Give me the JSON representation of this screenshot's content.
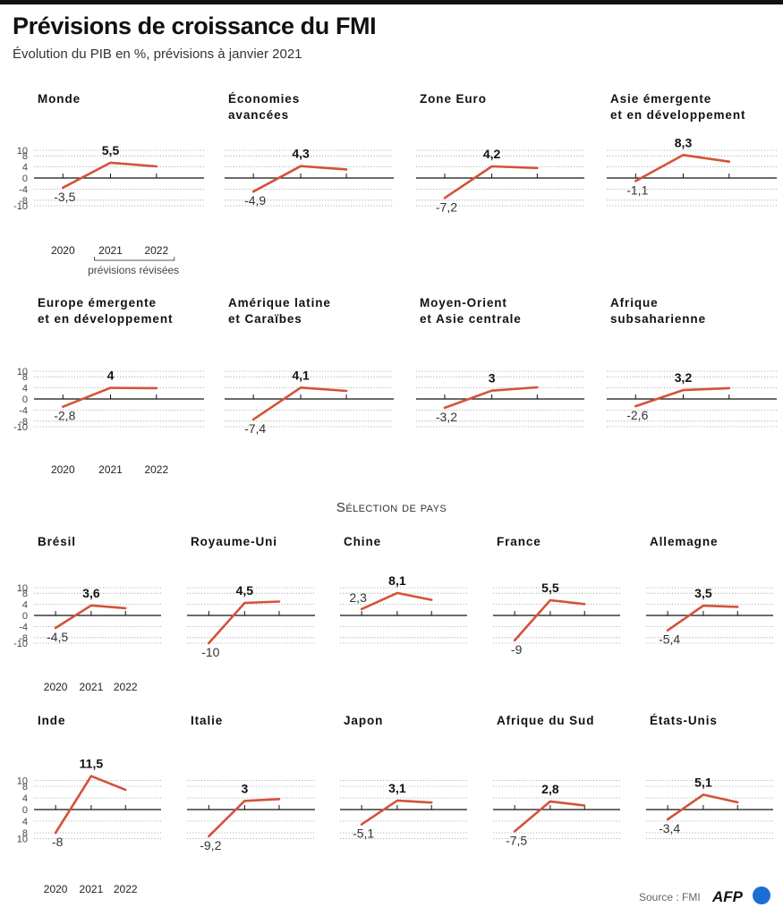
{
  "title": "Prévisions de croissance du FMI",
  "subtitle": "Évolution du PIB en %, prévisions à janvier 2021",
  "section_title": "Sélection de pays",
  "note": "prévisions révisées",
  "source": "Source : FMI",
  "logo": "AFP",
  "colors": {
    "line": "#d4523a",
    "axis": "#111111",
    "grid": "#9a9a9a",
    "logo_circle": "#1a6fd6"
  },
  "chart_data": [
    {
      "type": "line",
      "title": "Monde",
      "title_lines": [
        "Monde"
      ],
      "x": [
        "2020",
        "2021",
        "2022"
      ],
      "values": [
        -3.5,
        5.5,
        4.2
      ],
      "labels": [
        "-3,5",
        "5,5",
        ""
      ],
      "yticks": [
        10,
        8,
        4,
        0,
        -4,
        -8,
        -10
      ],
      "ylim": [
        -10,
        10
      ],
      "show_y": true,
      "show_x": true,
      "show_note": true
    },
    {
      "type": "line",
      "title": "Économies avancées",
      "title_lines": [
        "Économies",
        "avancées"
      ],
      "x": [
        "2020",
        "2021",
        "2022"
      ],
      "values": [
        -4.9,
        4.3,
        3.1
      ],
      "labels": [
        "-4,9",
        "4,3",
        ""
      ],
      "ylim": [
        -10,
        10
      ],
      "show_y": false,
      "show_x": false
    },
    {
      "type": "line",
      "title": "Zone Euro",
      "title_lines": [
        "Zone Euro"
      ],
      "x": [
        "2020",
        "2021",
        "2022"
      ],
      "values": [
        -7.2,
        4.2,
        3.6
      ],
      "labels": [
        "-7,2",
        "4,2",
        ""
      ],
      "ylim": [
        -10,
        10
      ],
      "show_y": false,
      "show_x": false
    },
    {
      "type": "line",
      "title": "Asie émergente et en développement",
      "title_lines": [
        "Asie émergente",
        "et en développement"
      ],
      "x": [
        "2020",
        "2021",
        "2022"
      ],
      "values": [
        -1.1,
        8.3,
        5.9
      ],
      "labels": [
        "-1,1",
        "8,3",
        ""
      ],
      "ylim": [
        -10,
        10
      ],
      "show_y": false,
      "show_x": false
    },
    {
      "type": "line",
      "title": "Europe émergente et en développement",
      "title_lines": [
        "Europe émergente",
        "et en développement"
      ],
      "x": [
        "2020",
        "2021",
        "2022"
      ],
      "values": [
        -2.8,
        4,
        3.9
      ],
      "labels": [
        "-2,8",
        "4",
        ""
      ],
      "yticks": [
        10,
        8,
        4,
        0,
        -4,
        -8,
        -10
      ],
      "ylim": [
        -10,
        10
      ],
      "show_y": true,
      "show_x": true
    },
    {
      "type": "line",
      "title": "Amérique latine et Caraïbes",
      "title_lines": [
        "Amérique latine",
        "et Caraïbes"
      ],
      "x": [
        "2020",
        "2021",
        "2022"
      ],
      "values": [
        -7.4,
        4.1,
        2.9
      ],
      "labels": [
        "-7,4",
        "4,1",
        ""
      ],
      "ylim": [
        -10,
        10
      ],
      "show_y": false,
      "show_x": false
    },
    {
      "type": "line",
      "title": "Moyen-Orient et Asie centrale",
      "title_lines": [
        "Moyen-Orient",
        "et Asie centrale"
      ],
      "x": [
        "2020",
        "2021",
        "2022"
      ],
      "values": [
        -3.2,
        3,
        4.2
      ],
      "labels": [
        "-3,2",
        "3",
        ""
      ],
      "ylim": [
        -10,
        10
      ],
      "show_y": false,
      "show_x": false
    },
    {
      "type": "line",
      "title": "Afrique subsaharienne",
      "title_lines": [
        "Afrique",
        "subsaharienne"
      ],
      "x": [
        "2020",
        "2021",
        "2022"
      ],
      "values": [
        -2.6,
        3.2,
        3.9
      ],
      "labels": [
        "-2,6",
        "3,2",
        ""
      ],
      "ylim": [
        -10,
        10
      ],
      "show_y": false,
      "show_x": false
    },
    {
      "type": "line",
      "title": "Brésil",
      "title_lines": [
        "Brésil"
      ],
      "x": [
        "2020",
        "2021",
        "2022"
      ],
      "values": [
        -4.5,
        3.6,
        2.6
      ],
      "labels": [
        "-4,5",
        "3,6",
        ""
      ],
      "yticks": [
        10,
        8,
        4,
        0,
        -4,
        -8,
        -10
      ],
      "ylim": [
        -10,
        10
      ],
      "show_y": true,
      "show_x": true
    },
    {
      "type": "line",
      "title": "Royaume-Uni",
      "title_lines": [
        "Royaume-Uni"
      ],
      "x": [
        "2020",
        "2021",
        "2022"
      ],
      "values": [
        -10,
        4.5,
        5
      ],
      "labels": [
        "-10",
        "4,5",
        ""
      ],
      "ylim": [
        -10,
        10
      ],
      "show_y": false,
      "show_x": false
    },
    {
      "type": "line",
      "title": "Chine",
      "title_lines": [
        "Chine"
      ],
      "x": [
        "2020",
        "2021",
        "2022"
      ],
      "values": [
        2.3,
        8.1,
        5.6
      ],
      "labels": [
        "2,3",
        "8,1",
        ""
      ],
      "ylim": [
        -10,
        10
      ],
      "show_y": false,
      "show_x": false
    },
    {
      "type": "line",
      "title": "France",
      "title_lines": [
        "France"
      ],
      "x": [
        "2020",
        "2021",
        "2022"
      ],
      "values": [
        -9,
        5.5,
        4.1
      ],
      "labels": [
        "-9",
        "5,5",
        ""
      ],
      "ylim": [
        -10,
        10
      ],
      "show_y": false,
      "show_x": false
    },
    {
      "type": "line",
      "title": "Allemagne",
      "title_lines": [
        "Allemagne"
      ],
      "x": [
        "2020",
        "2021",
        "2022"
      ],
      "values": [
        -5.4,
        3.5,
        3.1
      ],
      "labels": [
        "-5,4",
        "3,5",
        ""
      ],
      "ylim": [
        -10,
        10
      ],
      "show_y": false,
      "show_x": false
    },
    {
      "type": "line",
      "title": "Inde",
      "title_lines": [
        "Inde"
      ],
      "x": [
        "2020",
        "2021",
        "2022"
      ],
      "values": [
        -8,
        11.5,
        6.8
      ],
      "labels": [
        "-8",
        "11,5",
        ""
      ],
      "yticks": [
        10,
        8,
        4,
        0,
        4,
        8,
        10
      ],
      "ylim": [
        -10,
        12
      ],
      "show_y": true,
      "show_x": true
    },
    {
      "type": "line",
      "title": "Italie",
      "title_lines": [
        "Italie"
      ],
      "x": [
        "2020",
        "2021",
        "2022"
      ],
      "values": [
        -9.2,
        3,
        3.6
      ],
      "labels": [
        "-9,2",
        "3",
        ""
      ],
      "ylim": [
        -10,
        12
      ],
      "show_y": false,
      "show_x": false
    },
    {
      "type": "line",
      "title": "Japon",
      "title_lines": [
        "Japon"
      ],
      "x": [
        "2020",
        "2021",
        "2022"
      ],
      "values": [
        -5.1,
        3.1,
        2.4
      ],
      "labels": [
        "-5,1",
        "3,1",
        ""
      ],
      "ylim": [
        -10,
        12
      ],
      "show_y": false,
      "show_x": false
    },
    {
      "type": "line",
      "title": "Afrique du Sud",
      "title_lines": [
        "Afrique du Sud"
      ],
      "x": [
        "2020",
        "2021",
        "2022"
      ],
      "values": [
        -7.5,
        2.8,
        1.4
      ],
      "labels": [
        "-7,5",
        "2,8",
        ""
      ],
      "ylim": [
        -10,
        12
      ],
      "show_y": false,
      "show_x": false
    },
    {
      "type": "line",
      "title": "États-Unis",
      "title_lines": [
        "États-Unis"
      ],
      "x": [
        "2020",
        "2021",
        "2022"
      ],
      "values": [
        -3.4,
        5.1,
        2.5
      ],
      "labels": [
        "-3,4",
        "5,1",
        ""
      ],
      "ylim": [
        -10,
        12
      ],
      "show_y": false,
      "show_x": false
    }
  ]
}
